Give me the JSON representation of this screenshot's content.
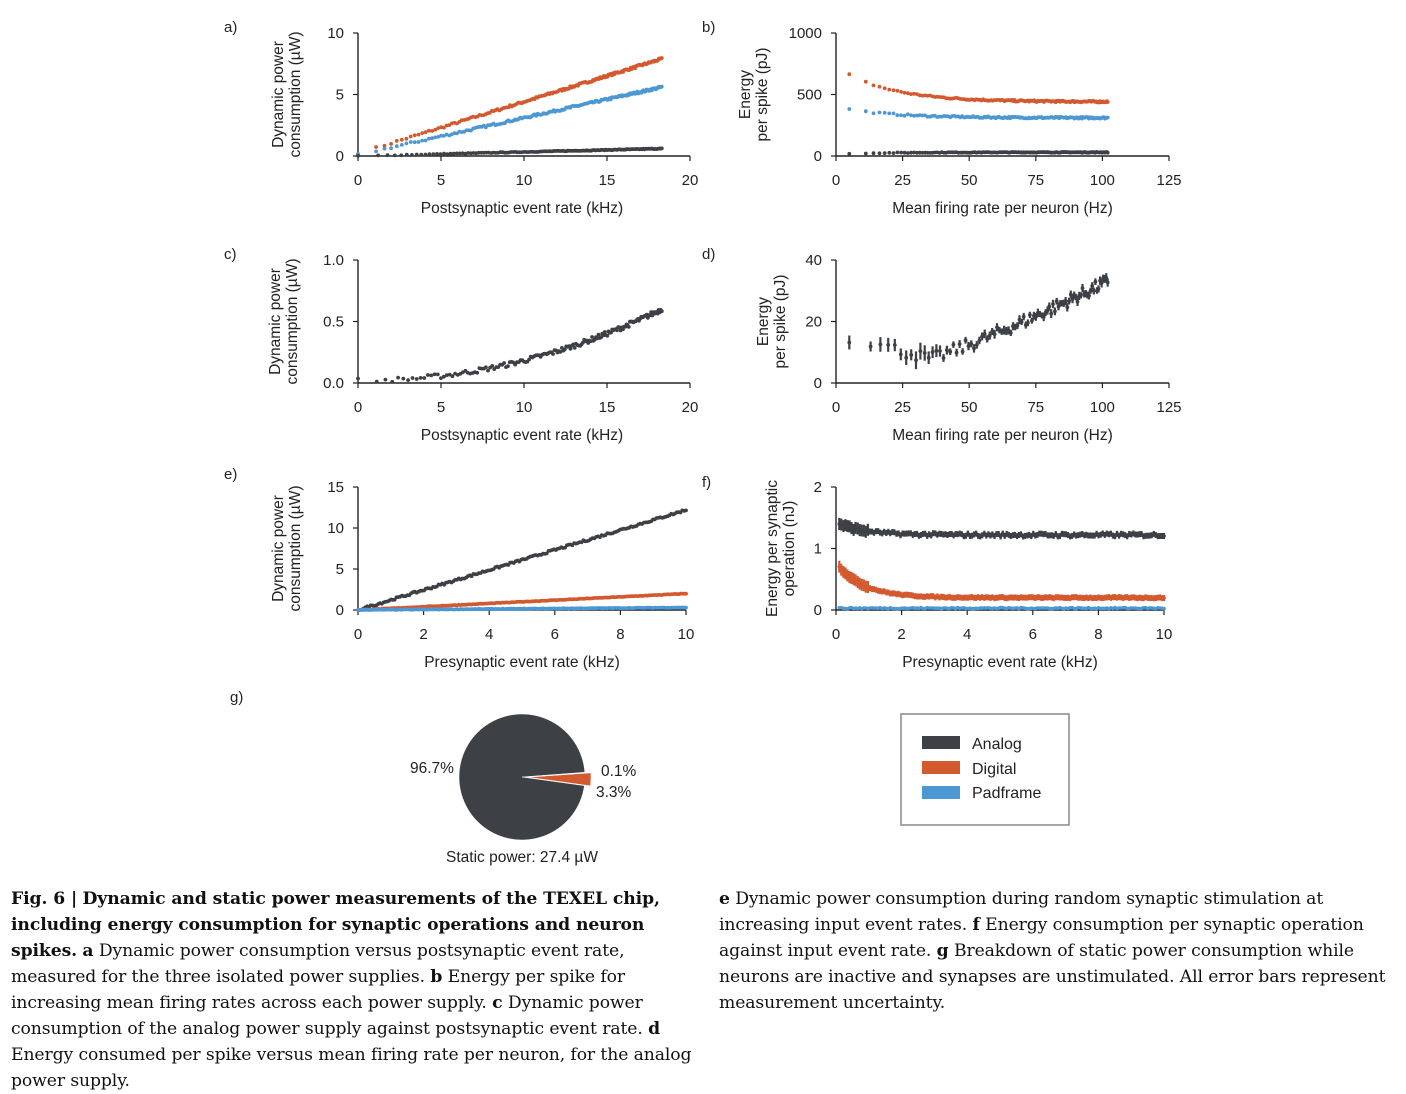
{
  "colors": {
    "analog": "#3d4045",
    "digital": "#d3592f",
    "padframe": "#4d98d3",
    "axis": "#222222"
  },
  "legend": {
    "items": [
      {
        "label": "Analog",
        "color": "#3d4045"
      },
      {
        "label": "Digital",
        "color": "#d3592f"
      },
      {
        "label": "Padframe",
        "color": "#4d98d3"
      }
    ]
  },
  "chart_data": [
    {
      "id": "a",
      "panel_label": "a)",
      "type": "scatter",
      "xlabel": "Postsynaptic event rate (kHz)",
      "ylabel": [
        "Dynamic power",
        "consumption (µW)"
      ],
      "xlim": [
        0,
        20
      ],
      "ylim": [
        0,
        10
      ],
      "xticks": [
        "0",
        "5",
        "10",
        "15",
        "20"
      ],
      "yticks": [
        "0",
        "5",
        "10"
      ],
      "series": [
        {
          "name": "Digital",
          "x_range": [
            0,
            18.3
          ],
          "y_start": 0.2,
          "y_end": 7.9
        },
        {
          "name": "Padframe",
          "x_range": [
            0,
            18.3
          ],
          "y_start": 0.1,
          "y_end": 5.6
        },
        {
          "name": "Analog",
          "x_range": [
            0,
            18.3
          ],
          "y_start": 0.0,
          "y_end": 0.6
        }
      ]
    },
    {
      "id": "b",
      "panel_label": "b)",
      "type": "scatter",
      "xlabel": "Mean firing rate per neuron (Hz)",
      "ylabel": [
        "Energy",
        "per spike (pJ)"
      ],
      "xlim": [
        0,
        125
      ],
      "ylim": [
        0,
        1000
      ],
      "xticks": [
        "0",
        "25",
        "50",
        "75",
        "100",
        "125"
      ],
      "yticks": [
        "0",
        "500",
        "1000"
      ],
      "series": [
        {
          "name": "Digital",
          "x_range": [
            5,
            102
          ],
          "y_start": 660,
          "y_end": 440
        },
        {
          "name": "Padframe",
          "x_range": [
            5,
            102
          ],
          "y_start": 380,
          "y_end": 310
        },
        {
          "name": "Analog",
          "x_range": [
            5,
            102
          ],
          "y_start": 20,
          "y_end": 30
        }
      ]
    },
    {
      "id": "c",
      "panel_label": "c)",
      "type": "scatter",
      "xlabel": "Postsynaptic event rate (kHz)",
      "ylabel": [
        "Dynamic power",
        "consumption (µW)"
      ],
      "xlim": [
        0,
        20
      ],
      "ylim": [
        0,
        1.0
      ],
      "xticks": [
        "0",
        "5",
        "10",
        "15",
        "20"
      ],
      "yticks": [
        "0.0",
        "0.5",
        "1.0"
      ],
      "series": [
        {
          "name": "Analog",
          "x_range": [
            0,
            18.3
          ],
          "y_start": 0.02,
          "y_end": 0.6
        }
      ]
    },
    {
      "id": "d",
      "panel_label": "d)",
      "type": "scatter",
      "xlabel": "Mean firing rate per neuron (Hz)",
      "ylabel": [
        "Energy",
        "per spike (pJ)"
      ],
      "xlim": [
        0,
        125
      ],
      "ylim": [
        0,
        40
      ],
      "xticks": [
        "0",
        "25",
        "50",
        "75",
        "100",
        "125"
      ],
      "yticks": [
        "0",
        "20",
        "40"
      ],
      "series": [
        {
          "name": "Analog",
          "x_range": [
            5,
            102
          ],
          "y_start": 15,
          "y_min": 8,
          "y_end": 33
        }
      ]
    },
    {
      "id": "e",
      "panel_label": "e)",
      "type": "scatter",
      "xlabel": "Presynaptic event rate (kHz)",
      "ylabel": [
        "Dynamic power",
        "consumption (µW)"
      ],
      "xlim": [
        0,
        10
      ],
      "ylim": [
        0,
        15
      ],
      "xticks": [
        "0",
        "2",
        "4",
        "6",
        "8",
        "10"
      ],
      "yticks": [
        "0",
        "5",
        "10",
        "15"
      ],
      "series": [
        {
          "name": "Analog",
          "x_range": [
            0,
            10
          ],
          "y_start": 0,
          "y_end": 12.2
        },
        {
          "name": "Digital",
          "x_range": [
            0,
            10
          ],
          "y_start": 0,
          "y_end": 2.0
        },
        {
          "name": "Padframe",
          "x_range": [
            0,
            10
          ],
          "y_start": 0,
          "y_end": 0.3
        }
      ]
    },
    {
      "id": "f",
      "panel_label": "f)",
      "type": "scatter",
      "xlabel": "Presynaptic event rate (kHz)",
      "ylabel": [
        "Energy per synaptic",
        "operation (nJ)"
      ],
      "xlim": [
        0,
        10
      ],
      "ylim": [
        0,
        2
      ],
      "xticks": [
        "0",
        "2",
        "4",
        "6",
        "8",
        "10"
      ],
      "yticks": [
        "0",
        "1",
        "2"
      ],
      "series": [
        {
          "name": "Analog",
          "x_range": [
            0.1,
            10
          ],
          "y_start": 1.4,
          "y_end": 1.22
        },
        {
          "name": "Digital",
          "x_range": [
            0.1,
            10
          ],
          "y_start": 0.7,
          "y_end": 0.2
        },
        {
          "name": "Padframe",
          "x_range": [
            0.1,
            10
          ],
          "y_start": 0.03,
          "y_end": 0.03
        }
      ]
    },
    {
      "id": "g",
      "panel_label": "g)",
      "type": "pie",
      "title": "Static power: 27.4 µW",
      "slices": [
        {
          "name": "Analog",
          "value": 96.7,
          "label": "96.7%"
        },
        {
          "name": "Digital",
          "value": 3.3,
          "label": "3.3%"
        },
        {
          "name": "Padframe",
          "value": 0.1,
          "label": "0.1%"
        }
      ]
    }
  ],
  "caption": {
    "fig": "Fig. 6 |",
    "title": "Dynamic and static power measurements of the TEXEL chip, including energy consumption for synaptic operations and neuron spikes.",
    "a_key": "a",
    "a": "Dynamic power consumption versus postsynaptic event rate, measured for the three isolated power supplies.",
    "b_key": "b",
    "b": "Energy per spike for increasing mean firing rates across each power supply.",
    "c_key": "c",
    "c": "Dynamic power consumption of the analog power supply against postsynaptic event rate.",
    "d_key": "d",
    "d": "Energy consumed per spike versus mean firing rate per neuron, for the analog power supply.",
    "e_key": "e",
    "e": "Dynamic power consumption during random synaptic stimulation at increasing input event rates.",
    "f_key": "f",
    "f": "Energy consumption per synaptic operation against input event rate.",
    "g_key": "g",
    "g": "Breakdown of static power consumption while neurons are inactive and synapses are unstimulated. All error bars represent measurement uncertainty."
  }
}
